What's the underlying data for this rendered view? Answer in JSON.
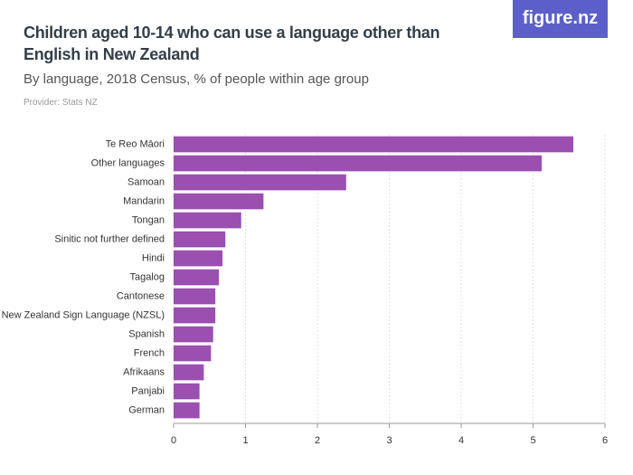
{
  "chart_data": {
    "type": "hbar",
    "title": "Children aged 10-14 who can use a language other than English in New Zealand",
    "subtitle": "By language, 2018 Census, % of people within age group",
    "provider": "Provider: Stats NZ",
    "logo": "figure.nz",
    "categories": [
      "Te Reo Māori",
      "Other languages",
      "Samoan",
      "Mandarin",
      "Tongan",
      "Sinitic not further defined",
      "Hindi",
      "Tagalog",
      "Cantonese",
      "New Zealand Sign Language (NZSL)",
      "Spanish",
      "French",
      "Afrikaans",
      "Panjabi",
      "German"
    ],
    "values": [
      5.56,
      5.12,
      2.4,
      1.25,
      0.94,
      0.72,
      0.68,
      0.63,
      0.58,
      0.58,
      0.55,
      0.52,
      0.42,
      0.36,
      0.36
    ],
    "color": "#9b4fb0",
    "xlim": [
      0,
      6
    ],
    "xticks": [
      0,
      1,
      2,
      3,
      4,
      5,
      6
    ],
    "grid": true
  }
}
